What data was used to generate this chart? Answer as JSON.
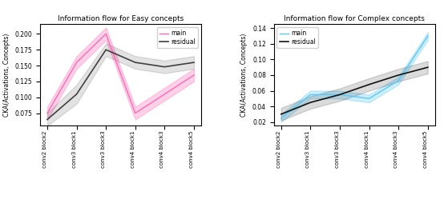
{
  "x_labels": [
    "conv2 block2",
    "conv3 block1",
    "conv3 block3",
    "conv4 block1",
    "conv4 block3",
    "conv4 block5"
  ],
  "easy_main": [
    0.075,
    0.155,
    0.2,
    0.075,
    0.105,
    0.135
  ],
  "easy_main_upper": [
    0.085,
    0.165,
    0.21,
    0.085,
    0.115,
    0.145
  ],
  "easy_main_lower": [
    0.065,
    0.145,
    0.19,
    0.065,
    0.095,
    0.125
  ],
  "easy_residual": [
    0.065,
    0.105,
    0.175,
    0.155,
    0.148,
    0.155
  ],
  "easy_residual_upper": [
    0.075,
    0.12,
    0.185,
    0.165,
    0.158,
    0.165
  ],
  "easy_residual_lower": [
    0.055,
    0.09,
    0.165,
    0.145,
    0.138,
    0.145
  ],
  "easy_ylim": [
    0.055,
    0.215
  ],
  "easy_yticks": [
    0.075,
    0.1,
    0.125,
    0.15,
    0.175,
    0.2
  ],
  "complex_main": [
    0.025,
    0.055,
    0.055,
    0.05,
    0.073,
    0.13
  ],
  "complex_main_upper": [
    0.03,
    0.06,
    0.06,
    0.055,
    0.078,
    0.135
  ],
  "complex_main_lower": [
    0.02,
    0.05,
    0.05,
    0.045,
    0.068,
    0.125
  ],
  "complex_residual": [
    0.03,
    0.045,
    0.055,
    0.068,
    0.08,
    0.09
  ],
  "complex_residual_upper": [
    0.038,
    0.053,
    0.063,
    0.076,
    0.088,
    0.098
  ],
  "complex_residual_lower": [
    0.022,
    0.037,
    0.047,
    0.06,
    0.072,
    0.082
  ],
  "complex_ylim": [
    0.015,
    0.145
  ],
  "complex_yticks": [
    0.02,
    0.04,
    0.06,
    0.08,
    0.1,
    0.12,
    0.14
  ],
  "easy_main_color": "#FF69B4",
  "easy_residual_color": "#404040",
  "complex_main_color": "#5BC8F5",
  "complex_residual_color": "#111111",
  "title_easy": "Information flow for Easy concepts",
  "title_complex": "Information flow for Complex concepts",
  "ylabel": "CKA(Activations, Concepts)",
  "legend_main": "main",
  "legend_residual": "residual"
}
